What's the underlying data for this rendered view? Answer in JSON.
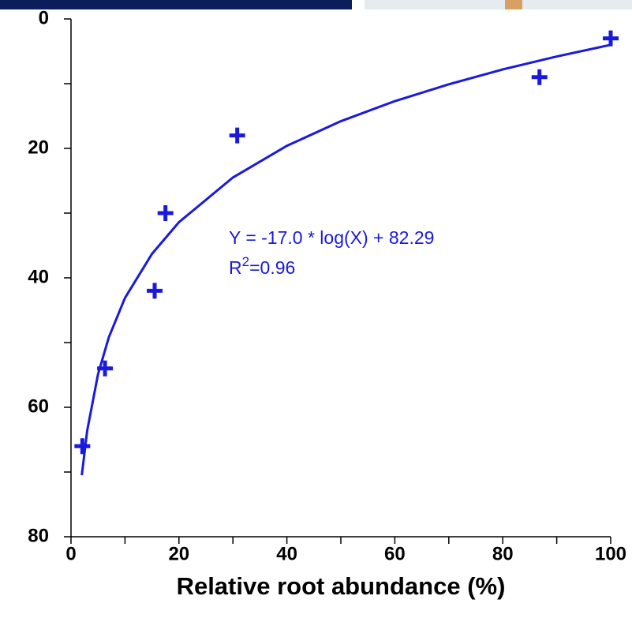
{
  "chart_data": {
    "type": "scatter",
    "x_label": "Relative root abundance (%)",
    "xlim": [
      0,
      100
    ],
    "xticks": [
      0,
      20,
      40,
      60,
      80,
      100
    ],
    "xticks_minor": [
      10,
      30,
      50,
      70,
      90
    ],
    "ylim": [
      0,
      80
    ],
    "y_inverted": true,
    "yticks": [
      0,
      20,
      40,
      60,
      80
    ],
    "yticks_minor": [
      10,
      30,
      50,
      70
    ],
    "points": {
      "color": "#1a1adc",
      "x": [
        2.1,
        6.3,
        15.5,
        17.5,
        30.8,
        86.8,
        100
      ],
      "y": [
        66,
        54,
        42,
        30,
        18,
        9,
        3
      ]
    },
    "fit": {
      "color": "#1a1adc",
      "x": [
        2,
        3,
        5,
        7,
        10,
        15,
        20,
        30,
        40,
        50,
        60,
        70,
        80,
        90,
        100
      ],
      "y": [
        70.5,
        63.6,
        54.9,
        49.2,
        43.1,
        36.3,
        31.4,
        24.5,
        19.6,
        15.8,
        12.7,
        10.1,
        7.8,
        5.8,
        4.0
      ]
    },
    "annotation": {
      "equation": "Y = -17.0 * log(X) + 82.29",
      "r_base": "R",
      "r_sup": "2",
      "r_rest": "=0.96",
      "color": "#1a1adc"
    }
  }
}
